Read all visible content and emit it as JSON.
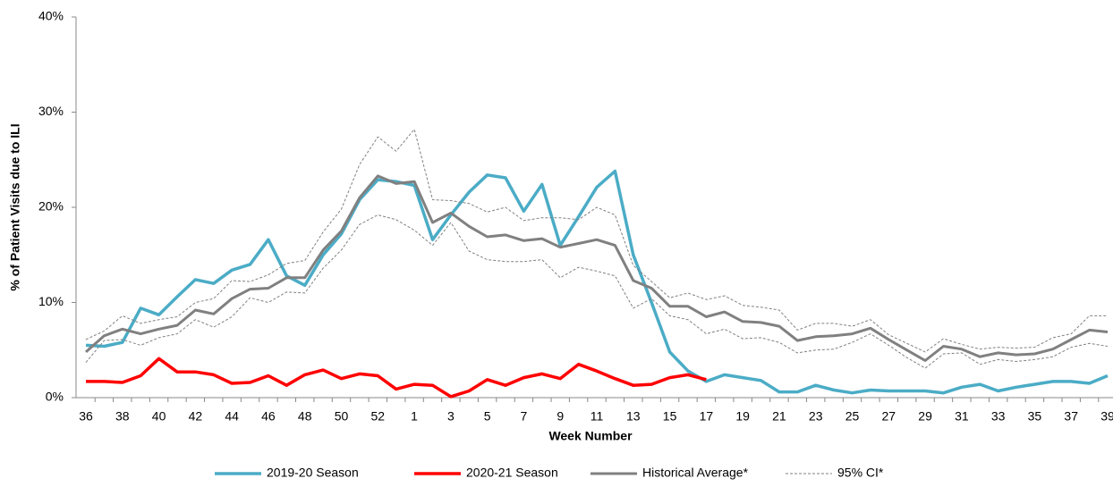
{
  "chart_data": {
    "type": "line",
    "y_label": "% of Patient Visits due to ILI",
    "x_label": "Week Number",
    "categories": [
      "36",
      null,
      "38",
      null,
      "40",
      null,
      "42",
      null,
      "44",
      null,
      "46",
      null,
      "48",
      null,
      "50",
      null,
      "52",
      null,
      "1",
      null,
      "3",
      null,
      "5",
      null,
      "7",
      null,
      "9",
      null,
      "11",
      null,
      "13",
      null,
      "15",
      null,
      "17",
      null,
      "19",
      null,
      "21",
      null,
      "23",
      null,
      "25",
      null,
      "27",
      null,
      "29",
      null,
      "31",
      null,
      "33",
      null,
      "35",
      null,
      "37",
      null,
      "39"
    ],
    "ylim": [
      0,
      40
    ],
    "yticks": [
      {
        "value": 0,
        "label": "0%"
      },
      {
        "value": 10,
        "label": "10%"
      },
      {
        "value": 20,
        "label": "20%"
      },
      {
        "value": 30,
        "label": "30%"
      },
      {
        "value": 40,
        "label": "40%"
      }
    ],
    "series": [
      {
        "name": "2019-20 Season",
        "color": "#4bacc6",
        "values": [
          5.5,
          5.4,
          5.8,
          9.4,
          8.7,
          10.6,
          12.4,
          12.0,
          13.4,
          14.0,
          16.6,
          12.8,
          11.8,
          15.0,
          17.2,
          20.8,
          22.9,
          22.7,
          22.3,
          16.6,
          19.2,
          21.6,
          23.4,
          23.1,
          19.6,
          22.4,
          16.0,
          19.0,
          22.1,
          23.8,
          15.0,
          10.0,
          4.8,
          2.8,
          1.7,
          2.4,
          2.1,
          1.8,
          0.6,
          0.6,
          1.3,
          0.8,
          0.5,
          0.8,
          0.7,
          0.7,
          0.7,
          0.5,
          1.1,
          1.4,
          0.7,
          1.1,
          1.4,
          1.7,
          1.7,
          1.5,
          2.3
        ]
      },
      {
        "name": "2020-21 Season",
        "color": "#ff0000",
        "values": [
          1.7,
          1.7,
          1.6,
          2.3,
          4.1,
          2.7,
          2.7,
          2.4,
          1.5,
          1.6,
          2.3,
          1.3,
          2.4,
          2.9,
          2.0,
          2.5,
          2.3,
          0.9,
          1.4,
          1.3,
          0.1,
          0.7,
          1.9,
          1.3,
          2.1,
          2.5,
          2.0,
          3.5,
          2.8,
          2.0,
          1.3,
          1.4,
          2.1,
          2.4,
          1.9,
          null,
          null,
          null,
          null,
          null,
          null,
          null,
          null,
          null,
          null,
          null,
          null,
          null,
          null,
          null,
          null,
          null,
          null,
          null,
          null,
          null,
          null
        ]
      },
      {
        "name": "Historical Average*",
        "color": "#808080",
        "values": [
          4.8,
          6.5,
          7.2,
          6.7,
          7.2,
          7.6,
          9.2,
          8.8,
          10.4,
          11.4,
          11.5,
          12.6,
          12.6,
          15.5,
          17.5,
          21.0,
          23.3,
          22.5,
          22.7,
          18.4,
          19.4,
          18.0,
          16.9,
          17.1,
          16.5,
          16.7,
          15.8,
          16.2,
          16.6,
          16.0,
          12.3,
          11.5,
          9.6,
          9.6,
          8.5,
          9.0,
          8.0,
          7.9,
          7.5,
          6.0,
          6.4,
          6.5,
          6.7,
          7.3,
          6.1,
          5.0,
          3.9,
          5.4,
          5.1,
          4.3,
          4.7,
          4.5,
          4.6,
          5.1,
          6.1,
          7.1,
          6.9
        ]
      },
      {
        "name": "95% CI*",
        "color": "#808080",
        "upper": [
          6.1,
          7.0,
          8.6,
          7.8,
          8.2,
          8.5,
          10.0,
          10.4,
          12.3,
          12.2,
          12.9,
          14.1,
          14.4,
          17.4,
          19.8,
          24.5,
          27.4,
          25.9,
          28.2,
          20.8,
          20.7,
          20.4,
          19.5,
          20.0,
          18.6,
          18.9,
          18.9,
          18.7,
          20.0,
          19.2,
          13.9,
          12.2,
          10.5,
          11.0,
          10.3,
          10.7,
          9.7,
          9.5,
          9.2,
          7.1,
          7.8,
          7.8,
          7.5,
          8.2,
          6.6,
          5.7,
          4.8,
          6.2,
          5.6,
          5.1,
          5.3,
          5.2,
          5.3,
          6.3,
          6.7,
          8.6,
          8.6
        ],
        "lower": [
          3.7,
          6.0,
          6.1,
          5.5,
          6.3,
          6.7,
          8.2,
          7.4,
          8.5,
          10.5,
          10.0,
          11.1,
          11.0,
          13.6,
          15.5,
          18.2,
          19.2,
          18.7,
          17.6,
          16.0,
          18.4,
          15.4,
          14.5,
          14.3,
          14.3,
          14.5,
          12.6,
          13.7,
          13.3,
          12.8,
          9.4,
          10.4,
          8.6,
          8.2,
          6.7,
          7.2,
          6.2,
          6.3,
          5.8,
          4.7,
          5.0,
          5.1,
          5.8,
          6.7,
          5.5,
          4.2,
          3.1,
          4.6,
          4.7,
          3.5,
          4.0,
          3.8,
          4.0,
          4.3,
          5.3,
          5.7,
          5.4
        ]
      }
    ],
    "legend": "bottom"
  }
}
